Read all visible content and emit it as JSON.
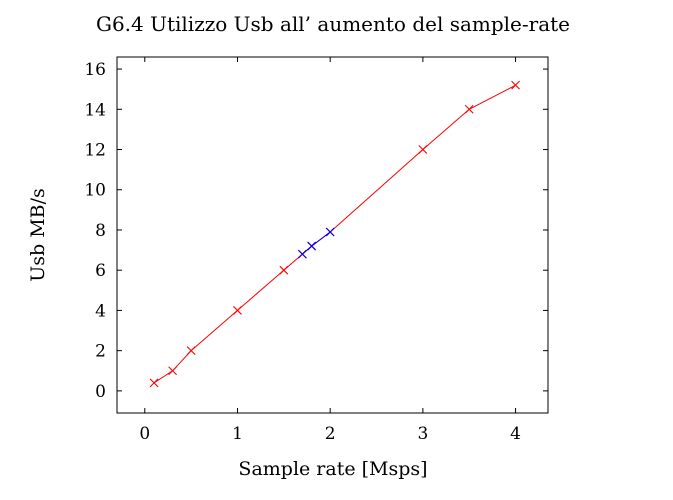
{
  "chart_data": {
    "type": "line",
    "title": "G6.4 Utilizzo Usb all’ aumento del sample-rate",
    "xlabel": "Sample rate [Msps]",
    "ylabel": "Usb MB/s",
    "xlim": [
      -0.3,
      4.35
    ],
    "ylim": [
      -1.1,
      16.6
    ],
    "xticks": [
      0,
      1,
      2,
      3,
      4
    ],
    "yticks": [
      0,
      2,
      4,
      6,
      8,
      10,
      12,
      14,
      16
    ],
    "grid": false,
    "legend": "none",
    "series": [
      {
        "color": "#ff0000",
        "marker": "x",
        "points": [
          [
            0.1,
            0.4
          ],
          [
            0.3,
            1.0
          ],
          [
            0.5,
            2.0
          ],
          [
            1.0,
            4.0
          ],
          [
            1.5,
            6.0
          ],
          [
            1.7,
            6.8
          ],
          [
            1.8,
            7.2
          ],
          [
            2.0,
            7.9
          ],
          [
            3.0,
            12.0
          ],
          [
            3.5,
            14.0
          ],
          [
            4.0,
            15.2
          ]
        ]
      },
      {
        "color": "#0000ff",
        "marker": "x",
        "points": [
          [
            1.7,
            6.8
          ],
          [
            1.8,
            7.2
          ],
          [
            2.0,
            7.9
          ]
        ]
      }
    ]
  }
}
